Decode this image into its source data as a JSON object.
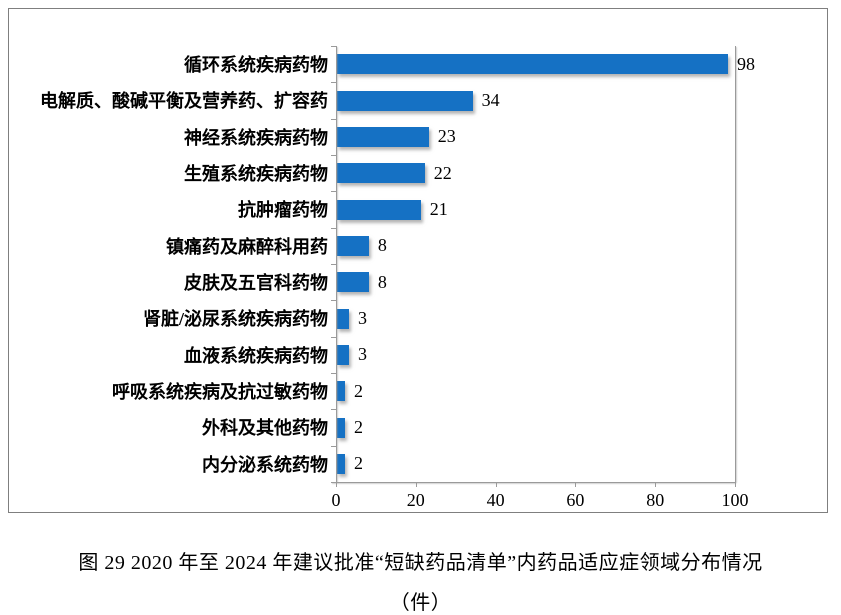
{
  "chart_data": {
    "type": "bar",
    "orientation": "horizontal",
    "title": "",
    "xlabel": "",
    "ylabel": "",
    "categories": [
      "循环系统疾病药物",
      "电解质、酸碱平衡及营养药、扩容药",
      "神经系统疾病药物",
      "生殖系统疾病药物",
      "抗肿瘤药物",
      "镇痛药及麻醉科用药",
      "皮肤及五官科药物",
      "肾脏/泌尿系统疾病药物",
      "血液系统疾病药物",
      "呼吸系统疾病及抗过敏药物",
      "外科及其他药物",
      "内分泌系统药物"
    ],
    "values": [
      98,
      34,
      23,
      22,
      21,
      8,
      8,
      3,
      3,
      2,
      2,
      2
    ],
    "data_labels": [
      "98",
      "34",
      "23",
      "22",
      "21",
      "8",
      "8",
      "3",
      "3",
      "2",
      "2",
      "2"
    ],
    "xlim": [
      0,
      100
    ],
    "x_ticks": [
      0,
      20,
      40,
      60,
      80,
      100
    ],
    "x_tick_labels": [
      "0",
      "20",
      "40",
      "60",
      "80",
      "100"
    ],
    "grid": "single vertical boundary line at x=100",
    "legend": "none",
    "bar_color": "#1571C4",
    "axis_color": "#9a9a9a",
    "frame_border_color": "#7f7f7f"
  },
  "caption": {
    "line1": "图 29  2020 年至 2024 年建议批准“短缺药品清单”内药品适应症领域分布情况",
    "line2": "（件）"
  }
}
